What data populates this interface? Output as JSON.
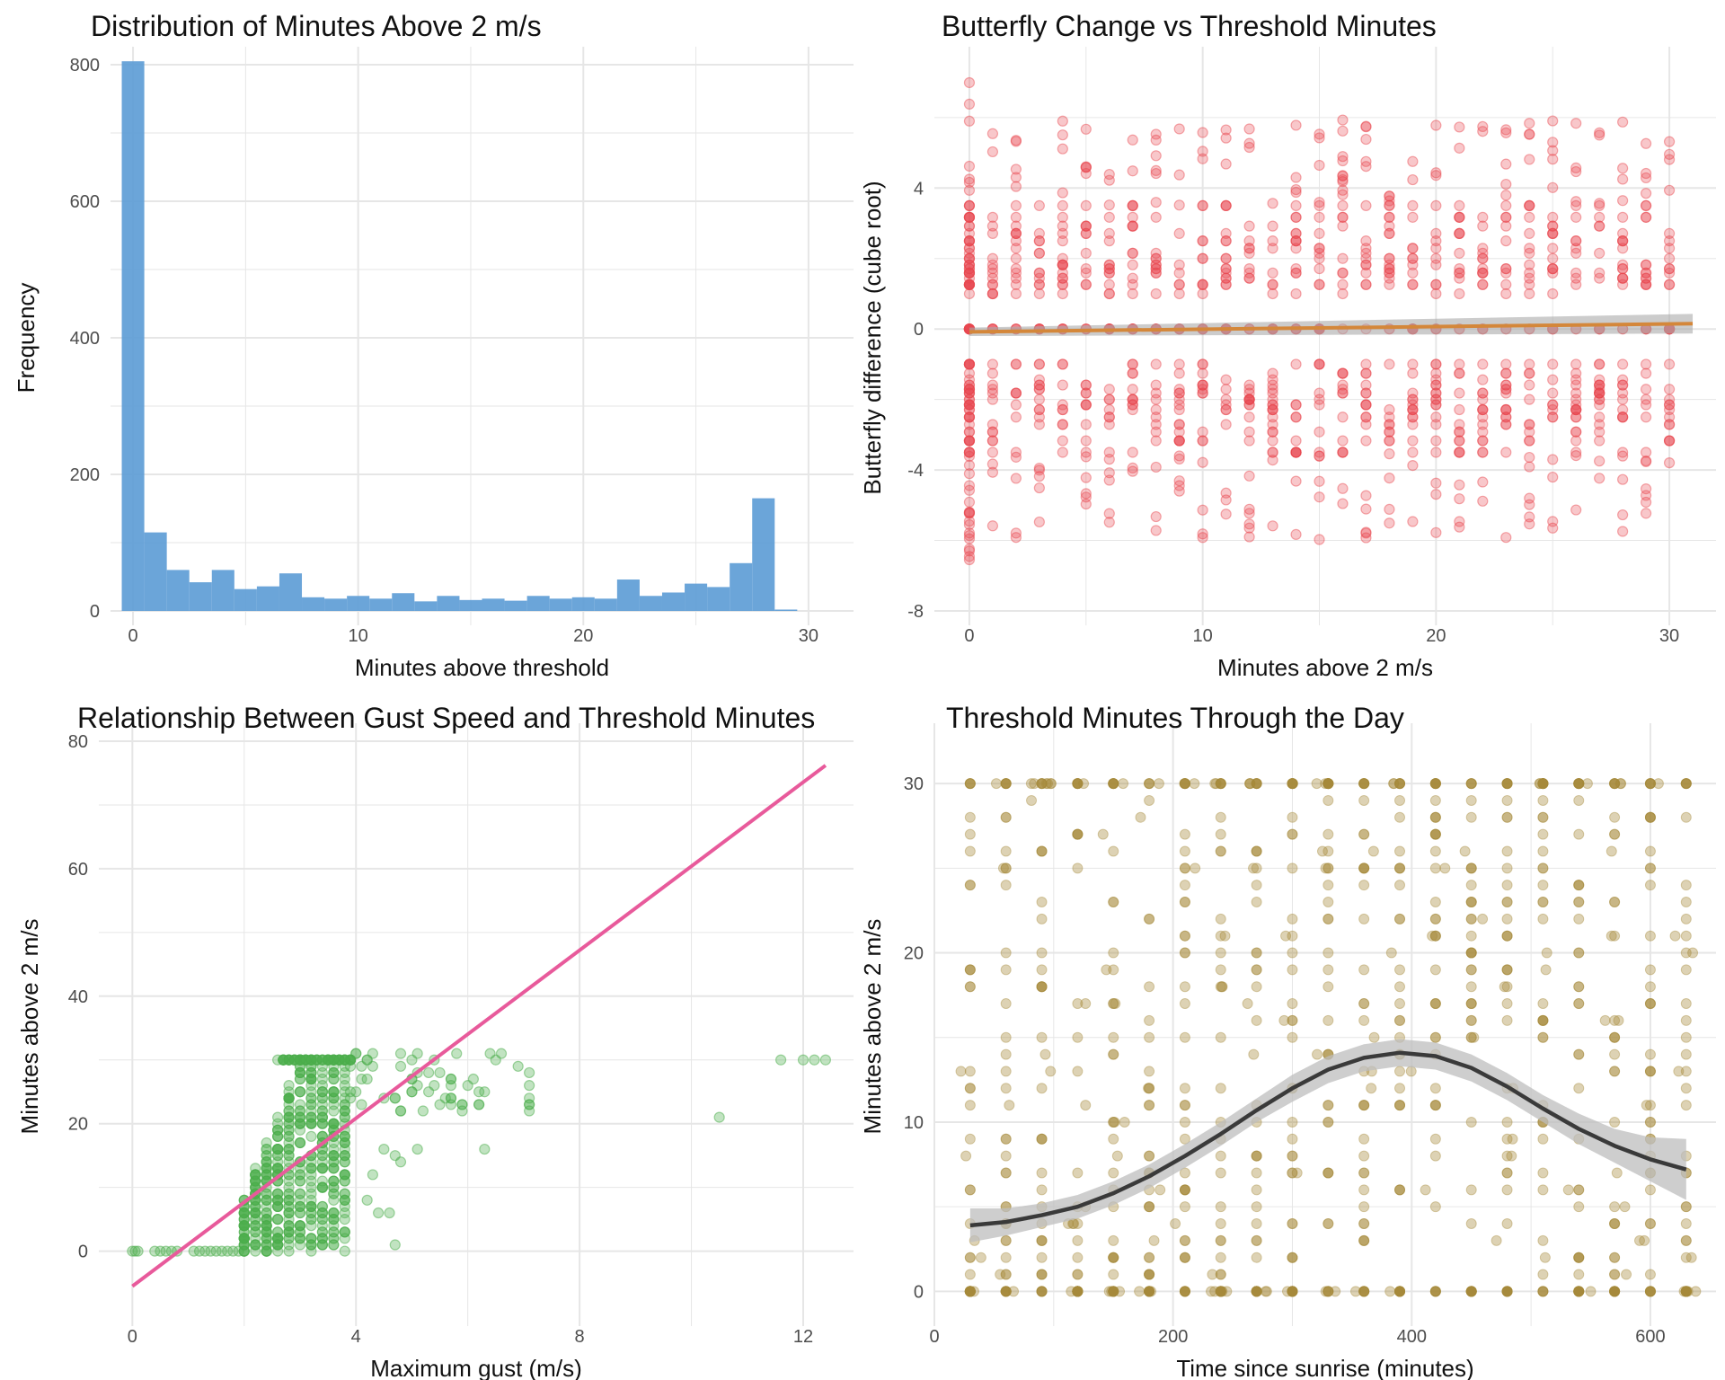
{
  "chart_data": [
    {
      "type": "bar",
      "title": "Distribution of Minutes Above 2 m/s",
      "xlabel": "Minutes above threshold",
      "ylabel": "Frequency",
      "xlim": [
        -1,
        32
      ],
      "ylim": [
        0,
        800
      ],
      "xticks": [
        "0",
        "10",
        "20",
        "30"
      ],
      "yticks": [
        "0",
        "200",
        "400",
        "600",
        "800"
      ],
      "grid": true,
      "bar_color": "#5b9bd5",
      "bins_start": -0.5,
      "bin_width": 1.0,
      "values": [
        805,
        115,
        60,
        42,
        60,
        32,
        36,
        55,
        20,
        18,
        22,
        18,
        26,
        14,
        22,
        16,
        18,
        15,
        22,
        18,
        20,
        18,
        46,
        22,
        27,
        40,
        35,
        70,
        165,
        2
      ]
    },
    {
      "type": "scatter",
      "title": "Butterfly Change vs Threshold Minutes",
      "xlabel": "Minutes above 2 m/s",
      "ylabel": "Butterfly difference (cube root)",
      "xlim": [
        -1.5,
        32
      ],
      "ylim": [
        -8,
        7.5
      ],
      "xticks": [
        "0",
        "10",
        "20",
        "30"
      ],
      "yticks": [
        "-8",
        "-4",
        "0",
        "4"
      ],
      "grid": true,
      "point_color": "#e8474e",
      "line_color": "#d4873a",
      "band_color": "#aaaaaa",
      "trend": {
        "x": [
          0,
          31
        ],
        "y": [
          -0.08,
          0.15
        ]
      }
    },
    {
      "type": "scatter",
      "title": "Relationship Between Gust Speed and Threshold Minutes",
      "xlabel": "Maximum gust (m/s)",
      "ylabel": "Minutes above 2 m/s",
      "xlim": [
        -0.6,
        12.9
      ],
      "ylim": [
        -9.5,
        80
      ],
      "xticks": [
        "0",
        "4",
        "8",
        "12"
      ],
      "yticks": [
        "0",
        "20",
        "40",
        "60",
        "80"
      ],
      "grid": true,
      "point_color": "#4cae4c",
      "line_color": "#e85a9b",
      "trend": {
        "x": [
          0,
          12.4
        ],
        "y": [
          -5.5,
          76.2
        ]
      }
    },
    {
      "type": "scatter",
      "title": "Threshold Minutes Through the Day",
      "xlabel": "Time since sunrise (minutes)",
      "ylabel": "Minutes above 2 m/s",
      "xlim": [
        0,
        655
      ],
      "ylim": [
        -1.2,
        32.5
      ],
      "xticks": [
        "0",
        "200",
        "400",
        "600"
      ],
      "yticks": [
        "0",
        "10",
        "20",
        "30"
      ],
      "grid": true,
      "point_color": "#a68a3a",
      "line_color": "#3a3a3a",
      "band_color": "#bdbdbd",
      "trend": {
        "x": [
          30,
          60,
          90,
          120,
          150,
          180,
          210,
          240,
          270,
          300,
          330,
          360,
          390,
          420,
          450,
          480,
          510,
          540,
          570,
          600,
          630
        ],
        "y": [
          3.9,
          4.1,
          4.5,
          5.0,
          5.8,
          6.8,
          8.0,
          9.3,
          10.7,
          12.0,
          13.1,
          13.8,
          14.1,
          13.9,
          13.2,
          12.1,
          10.8,
          9.6,
          8.6,
          7.8,
          7.2
        ],
        "band": [
          1.0,
          0.8,
          0.7,
          0.7,
          0.7,
          0.7,
          0.7,
          0.7,
          0.7,
          0.8,
          0.8,
          0.8,
          0.8,
          0.8,
          0.8,
          0.8,
          0.8,
          0.9,
          1.0,
          1.3,
          1.8
        ]
      }
    }
  ]
}
